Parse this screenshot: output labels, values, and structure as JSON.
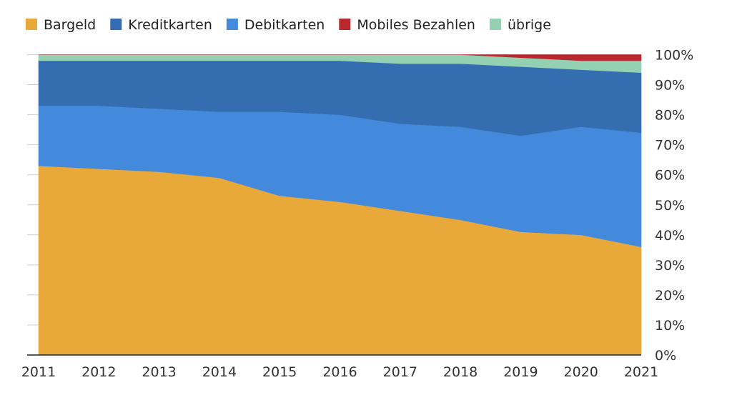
{
  "chart_data": {
    "type": "area",
    "stacked": true,
    "normalized": true,
    "title": "",
    "xlabel": "",
    "ylabel": "",
    "x": [
      "2011",
      "2012",
      "2013",
      "2014",
      "2015",
      "2016",
      "2017",
      "2018",
      "2019",
      "2020",
      "2021"
    ],
    "ylim": [
      0,
      100
    ],
    "yticks": [
      0,
      10,
      20,
      30,
      40,
      50,
      60,
      70,
      80,
      90,
      100
    ],
    "ytick_labels": [
      "0%",
      "10%",
      "20%",
      "30%",
      "40%",
      "50%",
      "60%",
      "70%",
      "80%",
      "90%",
      "100%"
    ],
    "y_axis_position": "right",
    "grid": "horizontal",
    "legend_position": "top-left",
    "series": [
      {
        "name": "Bargeld",
        "color": "#E9A83A",
        "values": [
          63,
          62,
          61,
          59,
          53,
          51,
          48,
          45,
          41,
          40,
          36
        ]
      },
      {
        "name": "Kreditkarten",
        "color": "#346EB0",
        "values": [
          15,
          15,
          16,
          17,
          17,
          18,
          20,
          21,
          23,
          19,
          20
        ]
      },
      {
        "name": "Debitkarten",
        "color": "#4389DC",
        "values": [
          20,
          21,
          21,
          22,
          28,
          29,
          29,
          31,
          32,
          36,
          38
        ]
      },
      {
        "name": "Mobiles Bezahlen",
        "color": "#B9272F",
        "values": [
          0,
          0,
          0,
          0,
          0,
          0,
          0,
          0,
          1,
          2,
          2
        ]
      },
      {
        "name": "übrige",
        "color": "#94D1B2",
        "values": [
          2,
          2,
          2,
          2,
          2,
          2,
          3,
          3,
          3,
          3,
          4
        ]
      }
    ],
    "stack_order_bottom_to_top": [
      "Bargeld",
      "Debitkarten",
      "Kreditkarten",
      "übrige",
      "Mobiles Bezahlen"
    ]
  }
}
